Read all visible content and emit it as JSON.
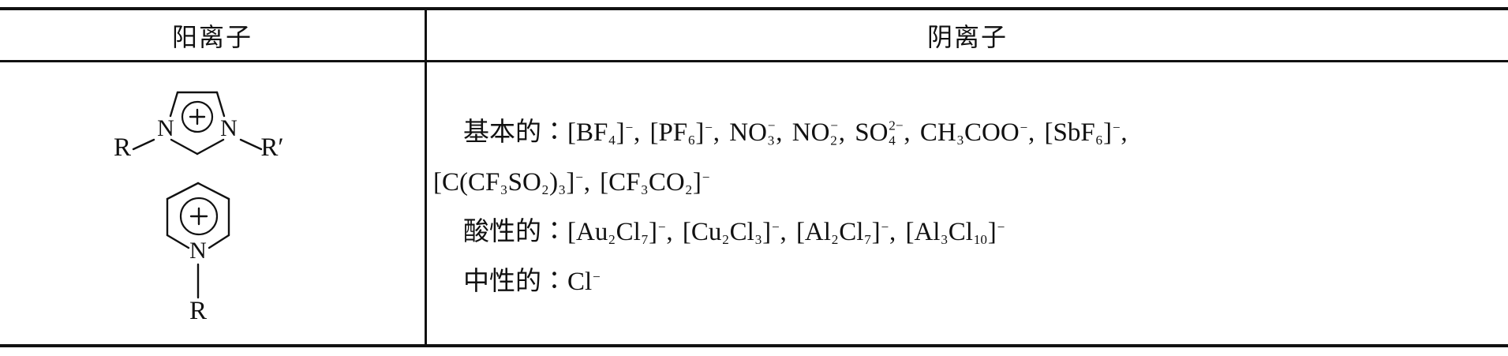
{
  "table": {
    "header": {
      "cation_label": "阳离子",
      "anion_label": "阴离子"
    },
    "cation": {
      "imidazolium": {
        "name": "1,3-dialkylimidazolium cation",
        "left_substituent": "R",
        "right_substituent": "R′",
        "nitrogen_left": "N",
        "nitrogen_right": "N",
        "charge_symbol": "+"
      },
      "pyridinium": {
        "name": "N-alkylpyridinium cation",
        "nitrogen": "N",
        "substituent": "R",
        "charge_symbol": "+"
      }
    },
    "anion": {
      "lines": [
        "基本的∶[BF<sub>4</sub>]<sup>−</sup>, [PF<sub>6</sub>]<sup>−</sup>, NO<span class='stk'><span>−</span><span>3</span></span>, NO<span class='stk'><span>−</span><span>2</span></span>, SO<span class='stk'><span>2−</span><span>4</span></span>, CH<sub>3</sub>COO<sup>−</sup>, [SbF<sub>6</sub>]<sup>−</sup>,",
        "[C(CF<sub>3</sub>SO<sub>2</sub>)<sub>3</sub>]<sup>−</sup>, [CF<sub>3</sub>CO<sub>2</sub>]<sup>−</sup>",
        "酸性的∶[Au<sub>2</sub>Cl<sub>7</sub>]<sup>−</sup>, [Cu<sub>2</sub>Cl<sub>3</sub>]<sup>−</sup>, [Al<sub>2</sub>Cl<sub>7</sub>]<sup>−</sup>, [Al<sub>3</sub>Cl<sub>10</sub>]<sup>−</sup>",
        "中性的∶Cl<sup>−</sup>"
      ]
    },
    "colors": {
      "ink": "#111111",
      "background": "#ffffff"
    }
  }
}
